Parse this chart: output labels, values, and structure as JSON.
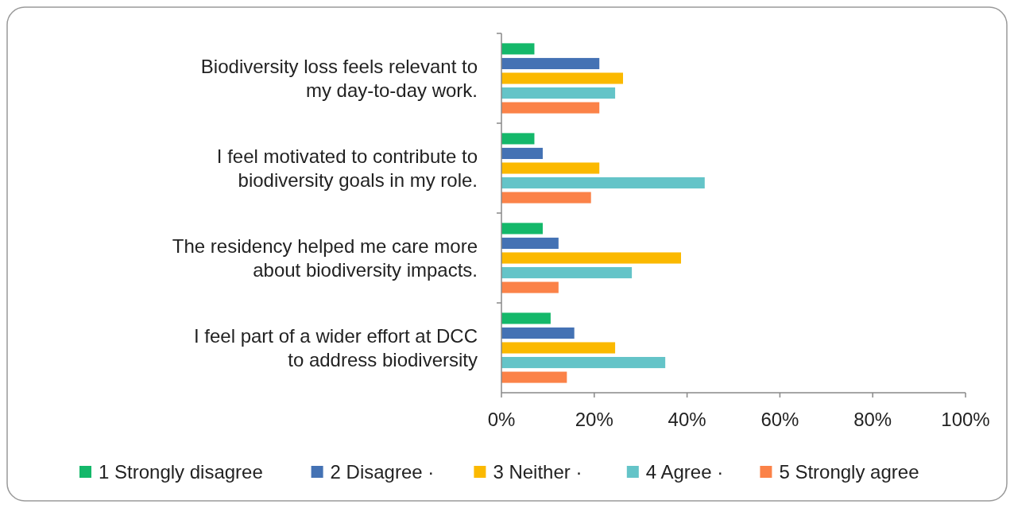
{
  "chart_data": {
    "type": "bar",
    "orientation": "horizontal",
    "categories": [
      "Biodiversity loss feels relevant to my day-to-day work.",
      "I feel motivated to contribute to biodiversity goals in my role.",
      "The residency helped me care more about biodiversity impacts.",
      "I feel part of a wider effort at DCC to address biodiversity"
    ],
    "series": [
      {
        "name": "1 Strongly disagree",
        "color": "#14b86a",
        "values": [
          7.1,
          7.1,
          8.9,
          10.6
        ]
      },
      {
        "name": "2 Disagree ·",
        "color": "#4472b4",
        "values": [
          21.1,
          8.9,
          12.3,
          15.7
        ]
      },
      {
        "name": "3 Neither ·",
        "color": "#fbb900",
        "values": [
          26.2,
          21.1,
          38.7,
          24.5
        ]
      },
      {
        "name": "4 Agree ·",
        "color": "#64c4c8",
        "values": [
          24.5,
          43.8,
          28.1,
          35.3
        ]
      },
      {
        "name": "5 Strongly agree",
        "color": "#fb8248",
        "values": [
          21.1,
          19.3,
          12.3,
          14.1
        ]
      }
    ],
    "xlim": [
      0,
      100
    ],
    "xticks": [
      {
        "value": 0,
        "label": "0%"
      },
      {
        "value": 20,
        "label": "20%"
      },
      {
        "value": 40,
        "label": "40%"
      },
      {
        "value": 60,
        "label": "60%"
      },
      {
        "value": 80,
        "label": "80%"
      },
      {
        "value": 100,
        "label": "100%"
      }
    ],
    "grid": false,
    "legend": "bottom"
  }
}
